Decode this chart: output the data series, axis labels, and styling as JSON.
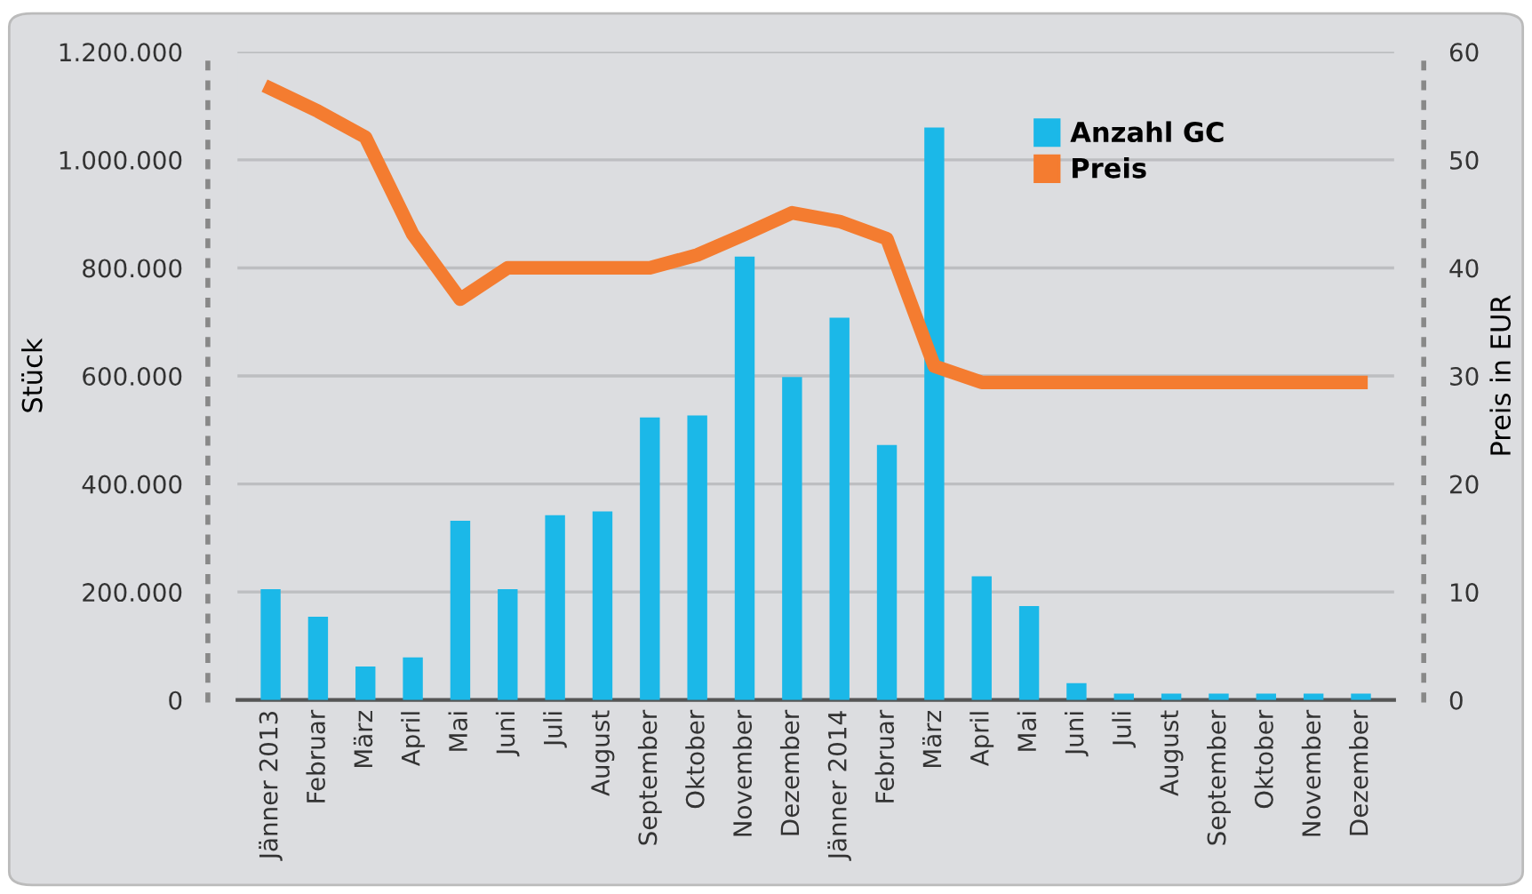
{
  "chart_data": {
    "type": "bar",
    "ylabel": "Stück",
    "y2label": "Preis in EUR",
    "categories": [
      "Jänner 2013",
      "Februar",
      "März",
      "April",
      "Mai",
      "Juni",
      "Juli",
      "August",
      "September",
      "Oktober",
      "November",
      "Dezember",
      "Jänner 2014",
      "Februar",
      "März",
      "April",
      "Mai",
      "Juni",
      "Juli",
      "August",
      "September",
      "Oktober",
      "November",
      "Dezember"
    ],
    "series": [
      {
        "name": "Anzahl GC",
        "color": "#1bb8e8",
        "values": [
          205000,
          154000,
          62000,
          79000,
          332000,
          205000,
          342000,
          349000,
          523000,
          527000,
          821000,
          598000,
          708000,
          472000,
          1060000,
          229000,
          174000,
          31000,
          12000,
          12000,
          12000,
          12000,
          12000,
          12000
        ]
      },
      {
        "name": "Preis",
        "type": "line",
        "axis": "y2",
        "color": "#f47c30",
        "values": [
          56.6,
          54.5,
          52.1,
          43.1,
          37.1,
          40,
          40,
          40,
          40,
          41.2,
          43.1,
          45.1,
          44.3,
          42.7,
          30.9,
          29.4,
          29.4,
          29.4,
          29.4,
          29.4,
          29.4,
          29.4,
          29.4,
          29.4
        ]
      }
    ],
    "ylim": [
      0,
      1200000
    ],
    "yticks": [
      {
        "value": 0,
        "label": "0"
      },
      {
        "value": 200000,
        "label": "200.000"
      },
      {
        "value": 400000,
        "label": "400.000"
      },
      {
        "value": 600000,
        "label": "600.000"
      },
      {
        "value": 800000,
        "label": "800.000"
      },
      {
        "value": 1000000,
        "label": "1.000.000"
      },
      {
        "value": 1200000,
        "label": "1.200.000"
      }
    ],
    "y2lim": [
      0,
      60
    ],
    "y2ticks": [
      0,
      10,
      20,
      30,
      40,
      50,
      60
    ],
    "grid": "y",
    "legend": "top right",
    "marker": "none",
    "line_style": "solid"
  }
}
